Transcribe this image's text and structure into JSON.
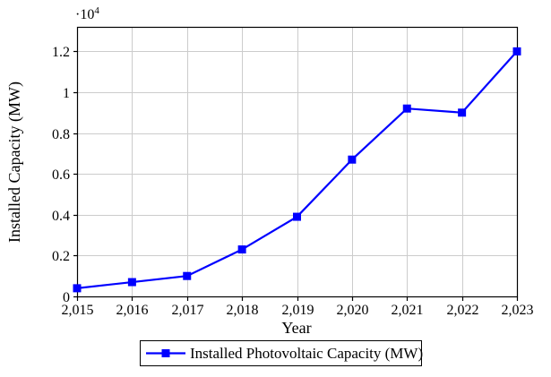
{
  "chart_data": {
    "type": "line",
    "title": "",
    "xlabel": "Year",
    "ylabel": "Installed Capacity (MW)",
    "y_axis_multiplier": {
      "base": "·10",
      "exponent": "4"
    },
    "x": [
      2015,
      2016,
      2017,
      2018,
      2019,
      2020,
      2021,
      2022,
      2023
    ],
    "xticklabels": [
      "2,015",
      "2,016",
      "2,017",
      "2,018",
      "2,019",
      "2,020",
      "2,021",
      "2,022",
      "2,023"
    ],
    "yticks": [
      0,
      2000,
      4000,
      6000,
      8000,
      10000,
      12000
    ],
    "yticklabels": [
      "0",
      "0.2",
      "0.4",
      "0.6",
      "0.8",
      "1",
      "1.2"
    ],
    "xlim": [
      2015,
      2023
    ],
    "ylim": [
      0,
      13200
    ],
    "grid": true,
    "legend_position": "below",
    "series": [
      {
        "name": "Installed Photovoltaic Capacity (MW)",
        "color": "#0000ff",
        "marker": "square",
        "values": [
          400,
          700,
          1000,
          2300,
          3900,
          6700,
          9200,
          9000,
          12000
        ]
      }
    ]
  },
  "colors": {
    "background": "#ffffff",
    "axis": "#000000",
    "grid": "#cccccc",
    "text": "#000000"
  }
}
